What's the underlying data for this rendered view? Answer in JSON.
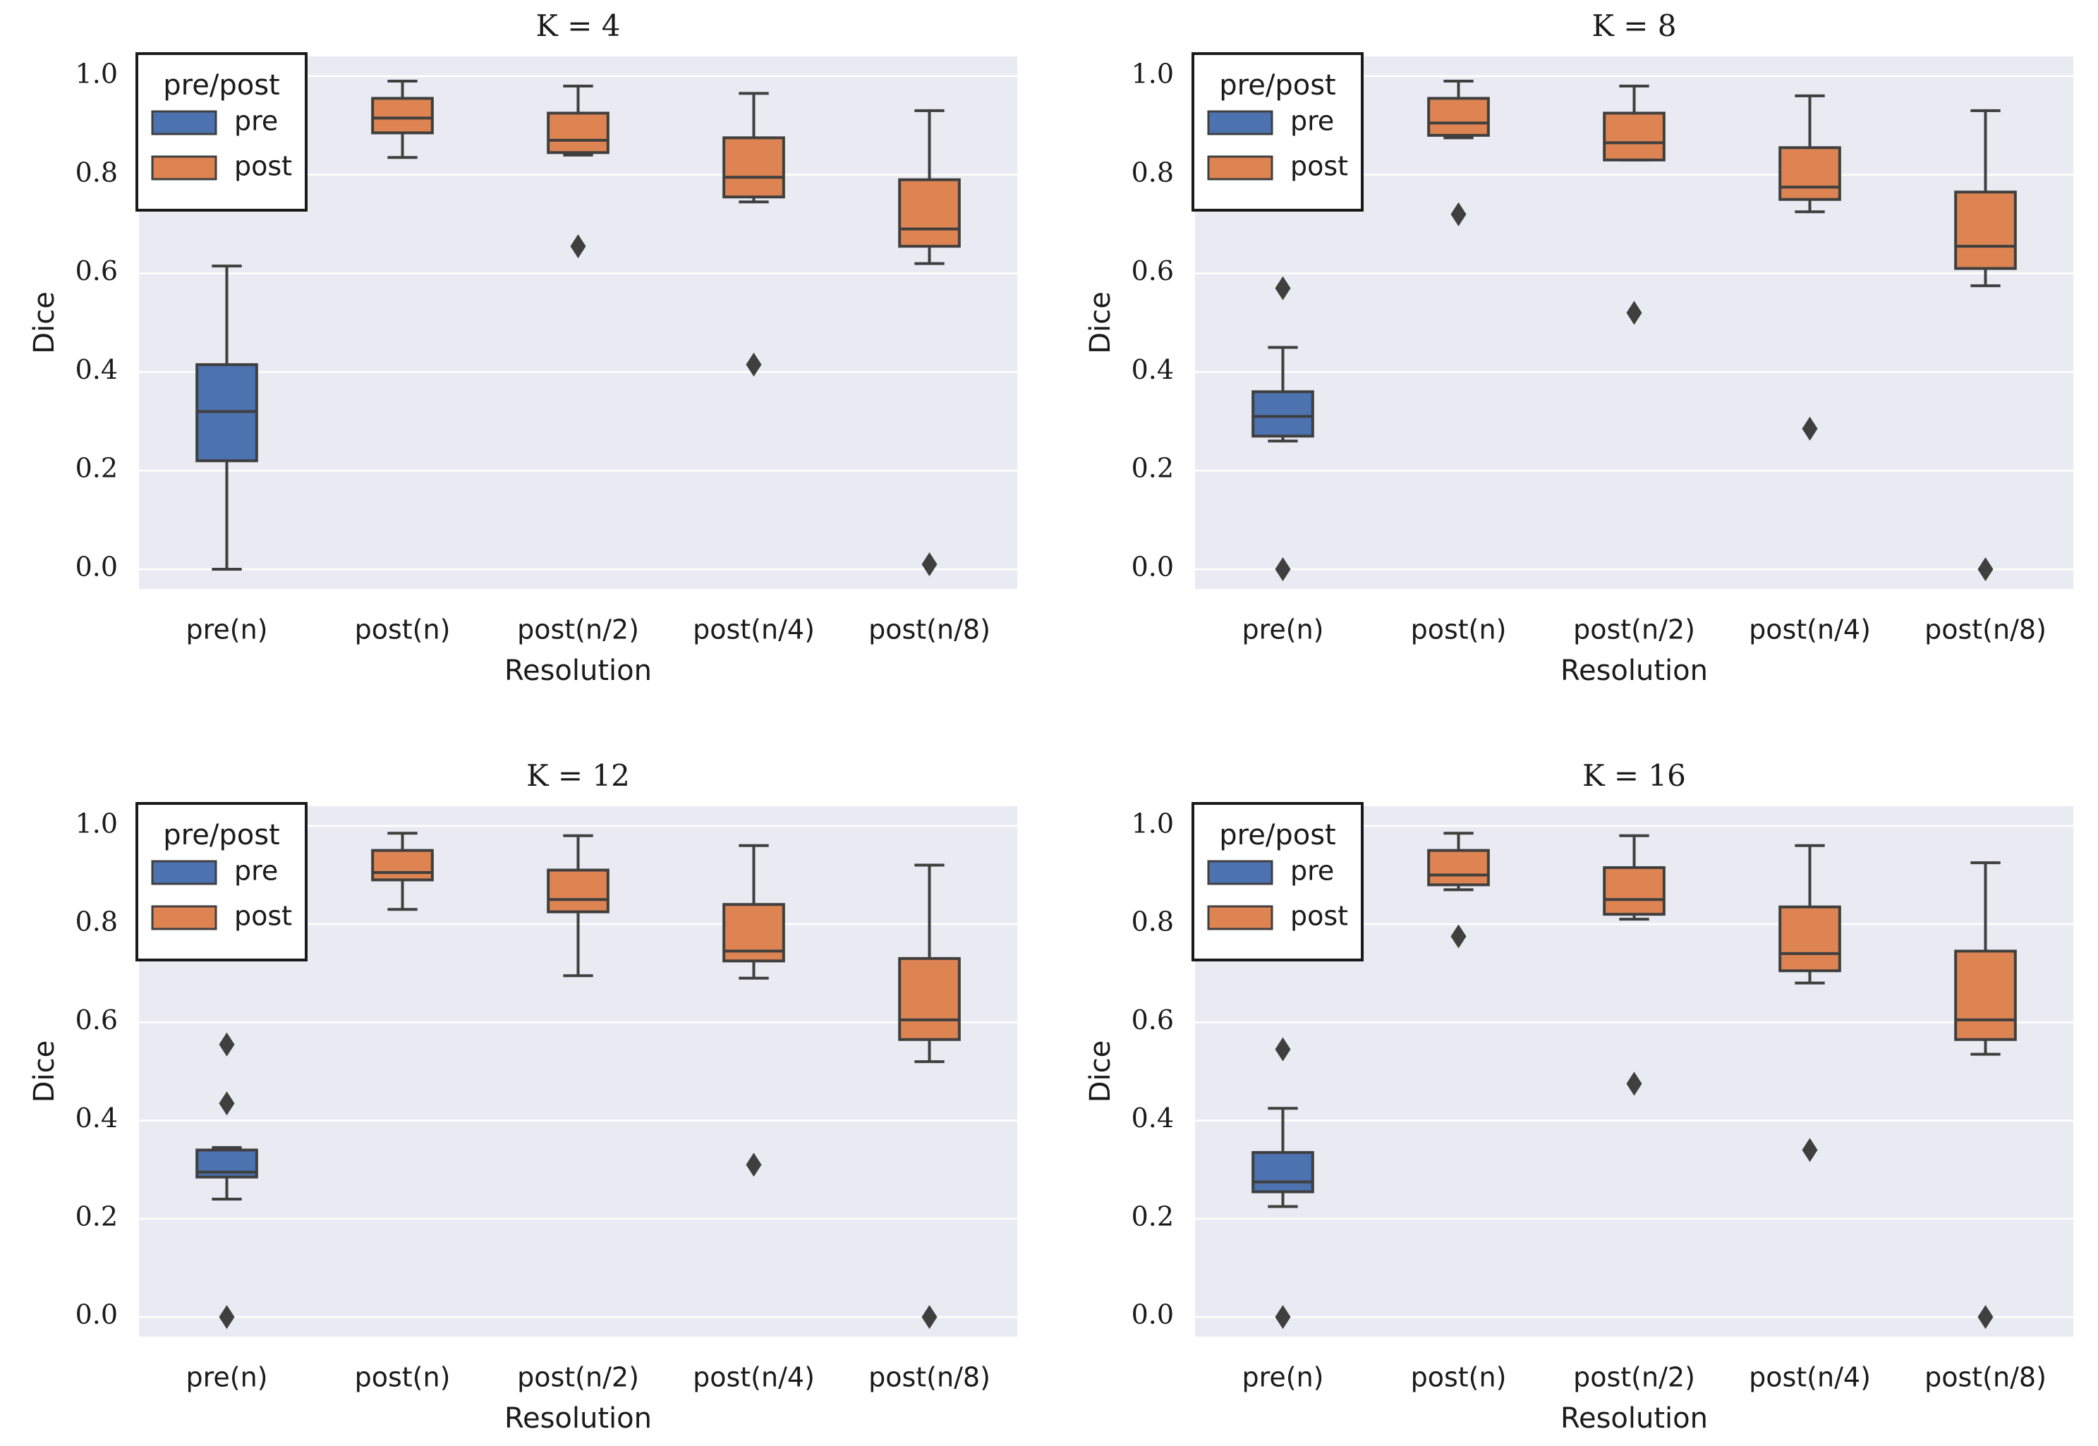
{
  "chart_data": [
    {
      "type": "box",
      "title": "K = 4",
      "xlabel": "Resolution",
      "ylabel": "Dice",
      "ylim": [
        -0.04,
        1.04
      ],
      "yticks": [
        "0.0",
        "0.2",
        "0.4",
        "0.6",
        "0.8",
        "1.0"
      ],
      "categories": [
        "pre(n)",
        "post(n)",
        "post(n/2)",
        "post(n/4)",
        "post(n/8)"
      ],
      "legend": {
        "title": "pre/post",
        "entries": [
          {
            "label": "pre",
            "color": "#4C72B0"
          },
          {
            "label": "post",
            "color": "#DD8452"
          }
        ],
        "placement": "top-left"
      },
      "boxes": [
        {
          "category": "pre(n)",
          "group": "pre",
          "whisker_low": 0.0,
          "q1": 0.22,
          "median": 0.32,
          "q3": 0.415,
          "whisker_high": 0.615,
          "outliers": []
        },
        {
          "category": "post(n)",
          "group": "post",
          "whisker_low": 0.835,
          "q1": 0.885,
          "median": 0.915,
          "q3": 0.955,
          "whisker_high": 0.99,
          "outliers": []
        },
        {
          "category": "post(n/2)",
          "group": "post",
          "whisker_low": 0.84,
          "q1": 0.845,
          "median": 0.87,
          "q3": 0.925,
          "whisker_high": 0.98,
          "outliers": [
            0.655
          ]
        },
        {
          "category": "post(n/4)",
          "group": "post",
          "whisker_low": 0.745,
          "q1": 0.755,
          "median": 0.795,
          "q3": 0.875,
          "whisker_high": 0.965,
          "outliers": [
            0.415
          ]
        },
        {
          "category": "post(n/8)",
          "group": "post",
          "whisker_low": 0.62,
          "q1": 0.655,
          "median": 0.69,
          "q3": 0.79,
          "whisker_high": 0.93,
          "outliers": [
            0.01
          ]
        }
      ]
    },
    {
      "type": "box",
      "title": "K = 8",
      "xlabel": "Resolution",
      "ylabel": "Dice",
      "ylim": [
        -0.04,
        1.04
      ],
      "yticks": [
        "0.0",
        "0.2",
        "0.4",
        "0.6",
        "0.8",
        "1.0"
      ],
      "categories": [
        "pre(n)",
        "post(n)",
        "post(n/2)",
        "post(n/4)",
        "post(n/8)"
      ],
      "legend": {
        "title": "pre/post",
        "entries": [
          {
            "label": "pre",
            "color": "#4C72B0"
          },
          {
            "label": "post",
            "color": "#DD8452"
          }
        ],
        "placement": "top-left"
      },
      "boxes": [
        {
          "category": "pre(n)",
          "group": "pre",
          "whisker_low": 0.26,
          "q1": 0.27,
          "median": 0.31,
          "q3": 0.36,
          "whisker_high": 0.45,
          "outliers": [
            0.57,
            0.0
          ]
        },
        {
          "category": "post(n)",
          "group": "post",
          "whisker_low": 0.875,
          "q1": 0.88,
          "median": 0.905,
          "q3": 0.955,
          "whisker_high": 0.99,
          "outliers": [
            0.72
          ]
        },
        {
          "category": "post(n/2)",
          "group": "post",
          "whisker_low": 0.83,
          "q1": 0.83,
          "median": 0.865,
          "q3": 0.925,
          "whisker_high": 0.98,
          "outliers": [
            0.52
          ]
        },
        {
          "category": "post(n/4)",
          "group": "post",
          "whisker_low": 0.725,
          "q1": 0.75,
          "median": 0.775,
          "q3": 0.855,
          "whisker_high": 0.96,
          "outliers": [
            0.285
          ]
        },
        {
          "category": "post(n/8)",
          "group": "post",
          "whisker_low": 0.575,
          "q1": 0.61,
          "median": 0.655,
          "q3": 0.765,
          "whisker_high": 0.93,
          "outliers": [
            0.0
          ]
        }
      ]
    },
    {
      "type": "box",
      "title": "K = 12",
      "xlabel": "Resolution",
      "ylabel": "Dice",
      "ylim": [
        -0.04,
        1.04
      ],
      "yticks": [
        "0.0",
        "0.2",
        "0.4",
        "0.6",
        "0.8",
        "1.0"
      ],
      "categories": [
        "pre(n)",
        "post(n)",
        "post(n/2)",
        "post(n/4)",
        "post(n/8)"
      ],
      "legend": {
        "title": "pre/post",
        "entries": [
          {
            "label": "pre",
            "color": "#4C72B0"
          },
          {
            "label": "post",
            "color": "#DD8452"
          }
        ],
        "placement": "top-left"
      },
      "boxes": [
        {
          "category": "pre(n)",
          "group": "pre",
          "whisker_low": 0.24,
          "q1": 0.285,
          "median": 0.295,
          "q3": 0.34,
          "whisker_high": 0.345,
          "outliers": [
            0.555,
            0.435,
            0.0
          ]
        },
        {
          "category": "post(n)",
          "group": "post",
          "whisker_low": 0.83,
          "q1": 0.89,
          "median": 0.905,
          "q3": 0.95,
          "whisker_high": 0.985,
          "outliers": []
        },
        {
          "category": "post(n/2)",
          "group": "post",
          "whisker_low": 0.695,
          "q1": 0.825,
          "median": 0.85,
          "q3": 0.91,
          "whisker_high": 0.98,
          "outliers": []
        },
        {
          "category": "post(n/4)",
          "group": "post",
          "whisker_low": 0.69,
          "q1": 0.725,
          "median": 0.745,
          "q3": 0.84,
          "whisker_high": 0.96,
          "outliers": [
            0.31
          ]
        },
        {
          "category": "post(n/8)",
          "group": "post",
          "whisker_low": 0.52,
          "q1": 0.565,
          "median": 0.605,
          "q3": 0.73,
          "whisker_high": 0.92,
          "outliers": [
            0.0
          ]
        }
      ]
    },
    {
      "type": "box",
      "title": "K = 16",
      "xlabel": "Resolution",
      "ylabel": "Dice",
      "ylim": [
        -0.04,
        1.04
      ],
      "yticks": [
        "0.0",
        "0.2",
        "0.4",
        "0.6",
        "0.8",
        "1.0"
      ],
      "categories": [
        "pre(n)",
        "post(n)",
        "post(n/2)",
        "post(n/4)",
        "post(n/8)"
      ],
      "legend": {
        "title": "pre/post",
        "entries": [
          {
            "label": "pre",
            "color": "#4C72B0"
          },
          {
            "label": "post",
            "color": "#DD8452"
          }
        ],
        "placement": "top-left"
      },
      "boxes": [
        {
          "category": "pre(n)",
          "group": "pre",
          "whisker_low": 0.225,
          "q1": 0.255,
          "median": 0.275,
          "q3": 0.335,
          "whisker_high": 0.425,
          "outliers": [
            0.545,
            0.0
          ]
        },
        {
          "category": "post(n)",
          "group": "post",
          "whisker_low": 0.87,
          "q1": 0.88,
          "median": 0.9,
          "q3": 0.95,
          "whisker_high": 0.985,
          "outliers": [
            0.775
          ]
        },
        {
          "category": "post(n/2)",
          "group": "post",
          "whisker_low": 0.81,
          "q1": 0.82,
          "median": 0.85,
          "q3": 0.915,
          "whisker_high": 0.98,
          "outliers": [
            0.475
          ]
        },
        {
          "category": "post(n/4)",
          "group": "post",
          "whisker_low": 0.68,
          "q1": 0.705,
          "median": 0.74,
          "q3": 0.835,
          "whisker_high": 0.96,
          "outliers": [
            0.34
          ]
        },
        {
          "category": "post(n/8)",
          "group": "post",
          "whisker_low": 0.535,
          "q1": 0.565,
          "median": 0.605,
          "q3": 0.745,
          "whisker_high": 0.925,
          "outliers": [
            0.0
          ]
        }
      ]
    }
  ],
  "colors": {
    "panel_background": "#EAEAF2",
    "grid": "#FFFFFF",
    "box_edge": "#3F3F3F",
    "text": "#1A1A1A",
    "legend_border": "#1A1A1A",
    "legend_background": "#FFFFFF"
  }
}
